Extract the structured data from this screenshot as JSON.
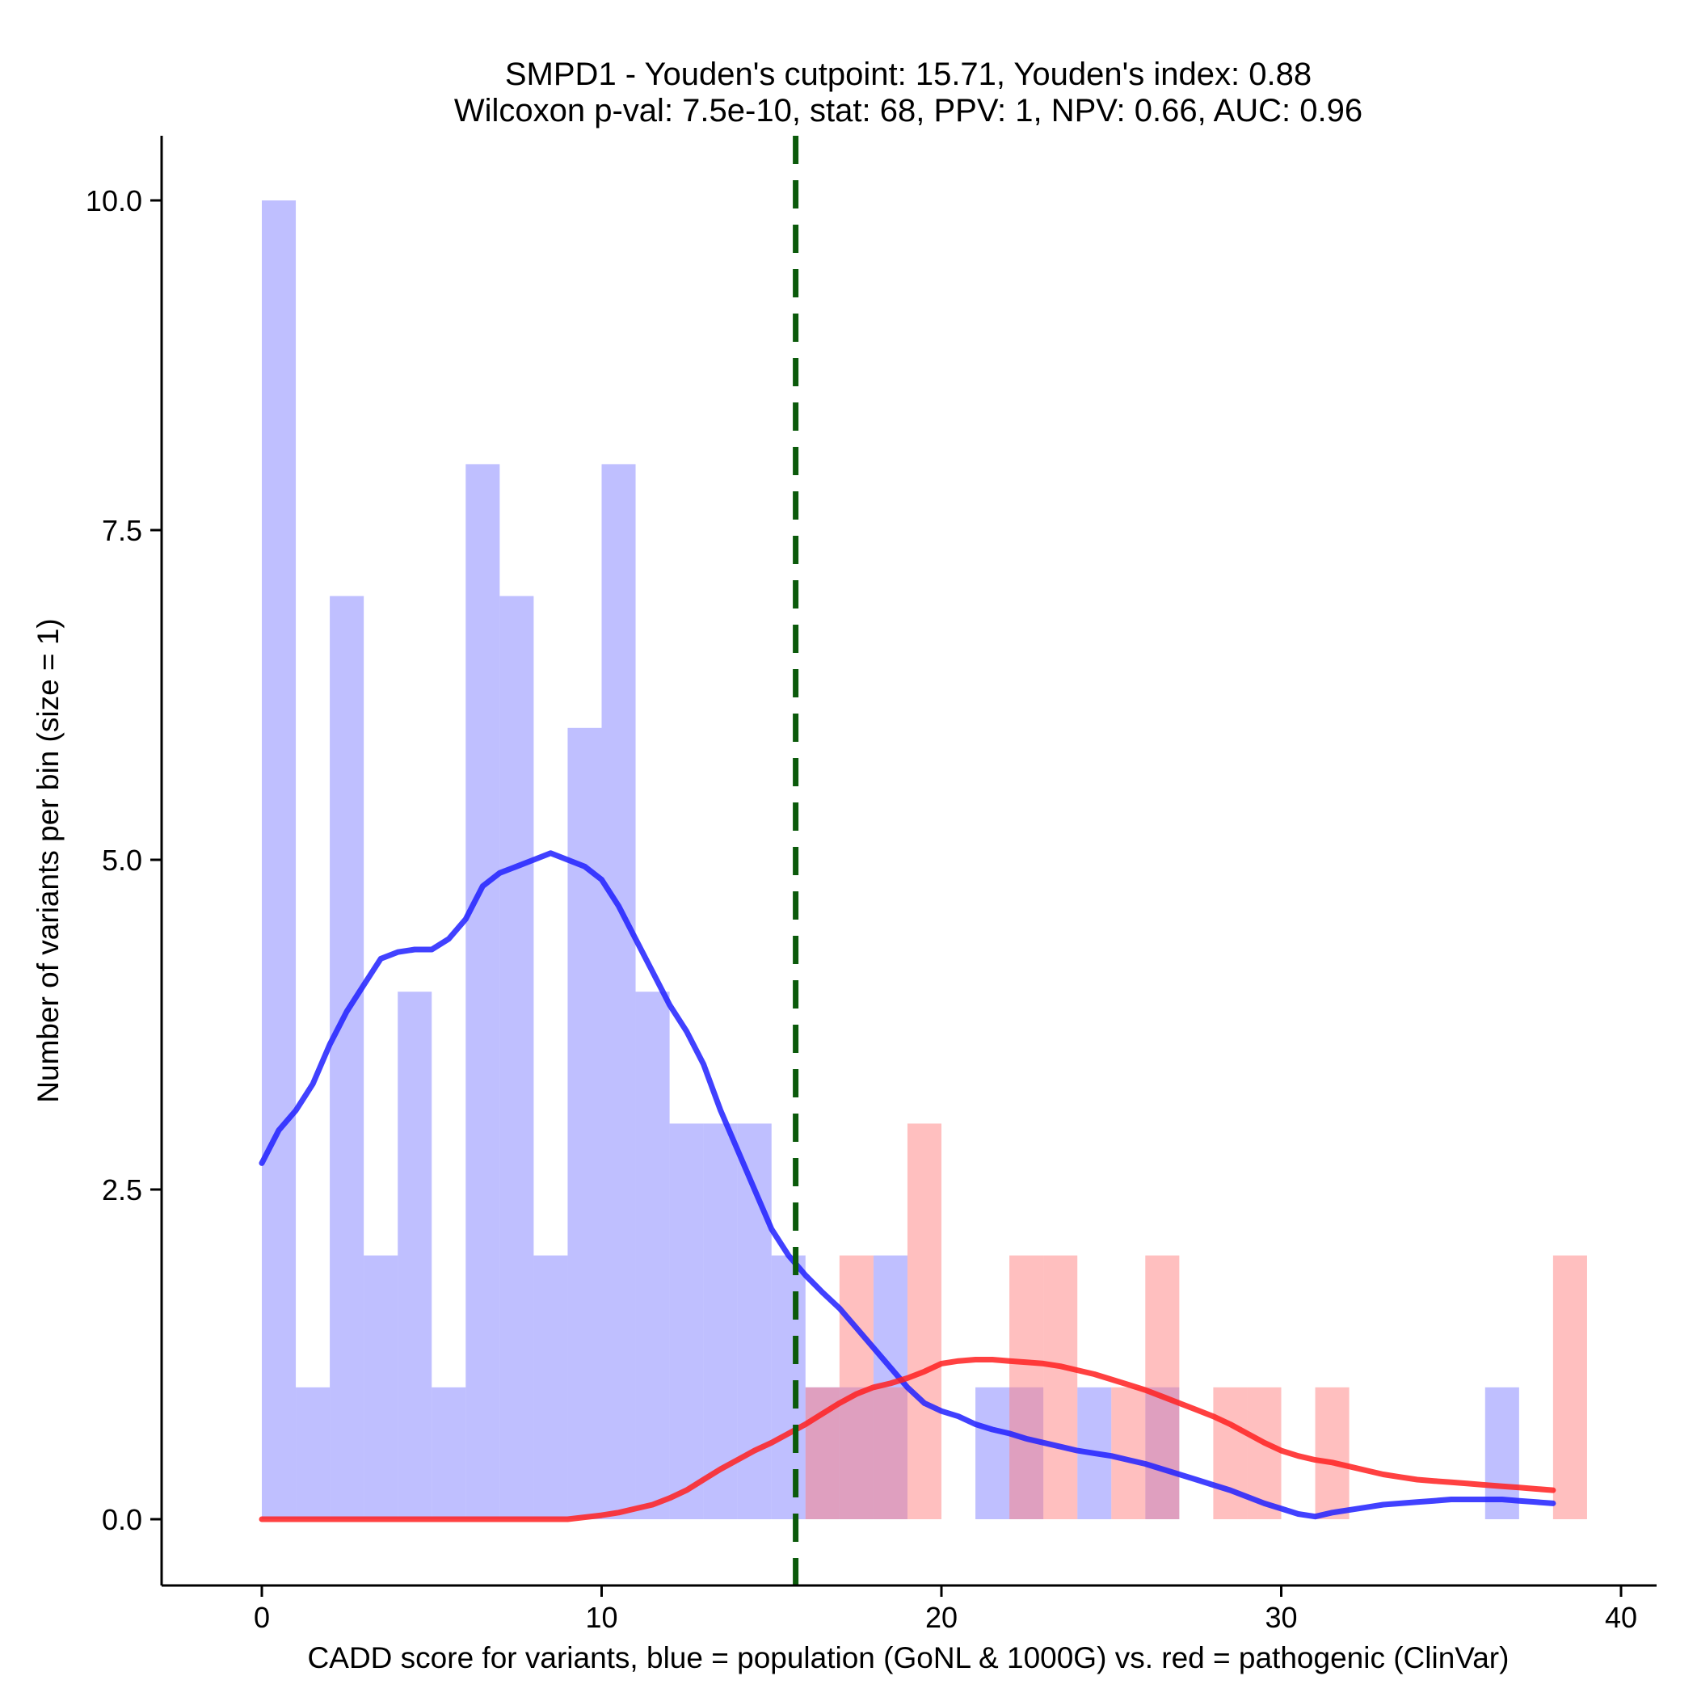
{
  "chart_data": {
    "type": "histogram",
    "title": "SMPD1 - Youden's cutpoint: 15.71, Youden's index: 0.88",
    "subtitle": "Wilcoxon p-val: 7.5e-10, stat: 68, PPV: 1, NPV: 0.66, AUC: 0.96",
    "xlabel": "CADD score for variants, blue = population (GoNL & 1000G) vs. red = pathogenic (ClinVar)",
    "ylabel": "Number of variants per bin (size = 1)",
    "xlim": [
      -3,
      41
    ],
    "ylim": [
      -0.5,
      10.5
    ],
    "xticks": [
      0,
      10,
      20,
      30,
      40
    ],
    "xtick_labels": [
      "0",
      "10",
      "20",
      "30",
      "40"
    ],
    "yticks": [
      0,
      2.5,
      5,
      7.5,
      10
    ],
    "ytick_labels": [
      "0.0",
      "2.5",
      "5.0",
      "7.5",
      "10.0"
    ],
    "cutpoint": 15.71,
    "bin_size": 1,
    "series": [
      {
        "name": "population (GoNL & 1000G)",
        "color": "#0000ff",
        "bins": [
          {
            "start": 0,
            "count": 10
          },
          {
            "start": 1,
            "count": 1
          },
          {
            "start": 2,
            "count": 7
          },
          {
            "start": 3,
            "count": 2
          },
          {
            "start": 4,
            "count": 4
          },
          {
            "start": 5,
            "count": 1
          },
          {
            "start": 6,
            "count": 8
          },
          {
            "start": 7,
            "count": 7
          },
          {
            "start": 8,
            "count": 2
          },
          {
            "start": 9,
            "count": 6
          },
          {
            "start": 10,
            "count": 8
          },
          {
            "start": 11,
            "count": 4
          },
          {
            "start": 12,
            "count": 3
          },
          {
            "start": 13,
            "count": 3
          },
          {
            "start": 14,
            "count": 3
          },
          {
            "start": 15,
            "count": 2
          },
          {
            "start": 16,
            "count": 1
          },
          {
            "start": 17,
            "count": 1
          },
          {
            "start": 18,
            "count": 2
          },
          {
            "start": 21,
            "count": 1
          },
          {
            "start": 22,
            "count": 1
          },
          {
            "start": 24,
            "count": 1
          },
          {
            "start": 26,
            "count": 1
          },
          {
            "start": 36,
            "count": 1
          }
        ],
        "density_curve": {
          "x": [
            0,
            0.5,
            1,
            1.5,
            2,
            2.5,
            3,
            3.5,
            4,
            4.5,
            5,
            5.5,
            6,
            6.5,
            7,
            7.5,
            8,
            8.5,
            9,
            9.5,
            10,
            10.5,
            11,
            11.5,
            12,
            12.5,
            13,
            13.5,
            14,
            14.5,
            15,
            15.5,
            16,
            16.5,
            17,
            17.5,
            18,
            18.5,
            19,
            19.5,
            20,
            20.5,
            21,
            21.5,
            22,
            22.5,
            23,
            23.5,
            24,
            24.5,
            25,
            25.5,
            26,
            26.5,
            27,
            27.5,
            28,
            28.5,
            29,
            29.5,
            30,
            30.5,
            31,
            31.5,
            32,
            32.5,
            33,
            33.5,
            34,
            34.5,
            35,
            35.5,
            36,
            36.5,
            37,
            37.5,
            38
          ],
          "y": [
            2.7,
            2.95,
            3.1,
            3.3,
            3.6,
            3.85,
            4.05,
            4.25,
            4.3,
            4.32,
            4.32,
            4.4,
            4.55,
            4.8,
            4.9,
            4.95,
            5.0,
            5.05,
            5.0,
            4.95,
            4.85,
            4.65,
            4.4,
            4.15,
            3.9,
            3.7,
            3.45,
            3.1,
            2.8,
            2.5,
            2.2,
            2.0,
            1.85,
            1.72,
            1.6,
            1.45,
            1.3,
            1.15,
            1.0,
            0.88,
            0.82,
            0.78,
            0.72,
            0.68,
            0.65,
            0.61,
            0.58,
            0.55,
            0.52,
            0.5,
            0.48,
            0.45,
            0.42,
            0.38,
            0.34,
            0.3,
            0.26,
            0.22,
            0.17,
            0.12,
            0.08,
            0.04,
            0.02,
            0.05,
            0.07,
            0.09,
            0.11,
            0.12,
            0.13,
            0.14,
            0.15,
            0.15,
            0.15,
            0.15,
            0.14,
            0.13,
            0.12
          ]
        }
      },
      {
        "name": "pathogenic (ClinVar)",
        "color": "#ff0000",
        "bins": [
          {
            "start": 16,
            "count": 1
          },
          {
            "start": 17,
            "count": 2
          },
          {
            "start": 18,
            "count": 1
          },
          {
            "start": 19,
            "count": 3
          },
          {
            "start": 22,
            "count": 2
          },
          {
            "start": 23,
            "count": 2
          },
          {
            "start": 25,
            "count": 1
          },
          {
            "start": 26,
            "count": 2
          },
          {
            "start": 28,
            "count": 1
          },
          {
            "start": 29,
            "count": 1
          },
          {
            "start": 31,
            "count": 1
          },
          {
            "start": 38,
            "count": 2
          }
        ],
        "density_curve": {
          "x": [
            0,
            1,
            2,
            3,
            4,
            5,
            6,
            7,
            8,
            9,
            10,
            10.5,
            11,
            11.5,
            12,
            12.5,
            13,
            13.5,
            14,
            14.5,
            15,
            15.5,
            16,
            16.5,
            17,
            17.5,
            18,
            18.5,
            19,
            19.5,
            20,
            20.5,
            21,
            21.5,
            22,
            22.5,
            23,
            23.5,
            24,
            24.5,
            25,
            25.5,
            26,
            26.5,
            27,
            27.5,
            28,
            28.5,
            29,
            29.5,
            30,
            30.5,
            31,
            31.5,
            32,
            32.5,
            33,
            33.5,
            34,
            34.5,
            35,
            35.5,
            36,
            36.5,
            37,
            37.5,
            38
          ],
          "y": [
            0,
            0,
            0,
            0,
            0,
            0,
            0,
            0,
            0,
            0,
            0.03,
            0.05,
            0.08,
            0.11,
            0.16,
            0.22,
            0.3,
            0.38,
            0.45,
            0.52,
            0.58,
            0.65,
            0.72,
            0.8,
            0.88,
            0.95,
            1.0,
            1.03,
            1.07,
            1.12,
            1.18,
            1.2,
            1.21,
            1.21,
            1.2,
            1.19,
            1.18,
            1.16,
            1.13,
            1.1,
            1.06,
            1.02,
            0.98,
            0.93,
            0.88,
            0.83,
            0.78,
            0.72,
            0.65,
            0.58,
            0.52,
            0.48,
            0.45,
            0.43,
            0.4,
            0.37,
            0.34,
            0.32,
            0.3,
            0.29,
            0.28,
            0.27,
            0.26,
            0.25,
            0.24,
            0.23,
            0.22
          ]
        }
      }
    ]
  }
}
